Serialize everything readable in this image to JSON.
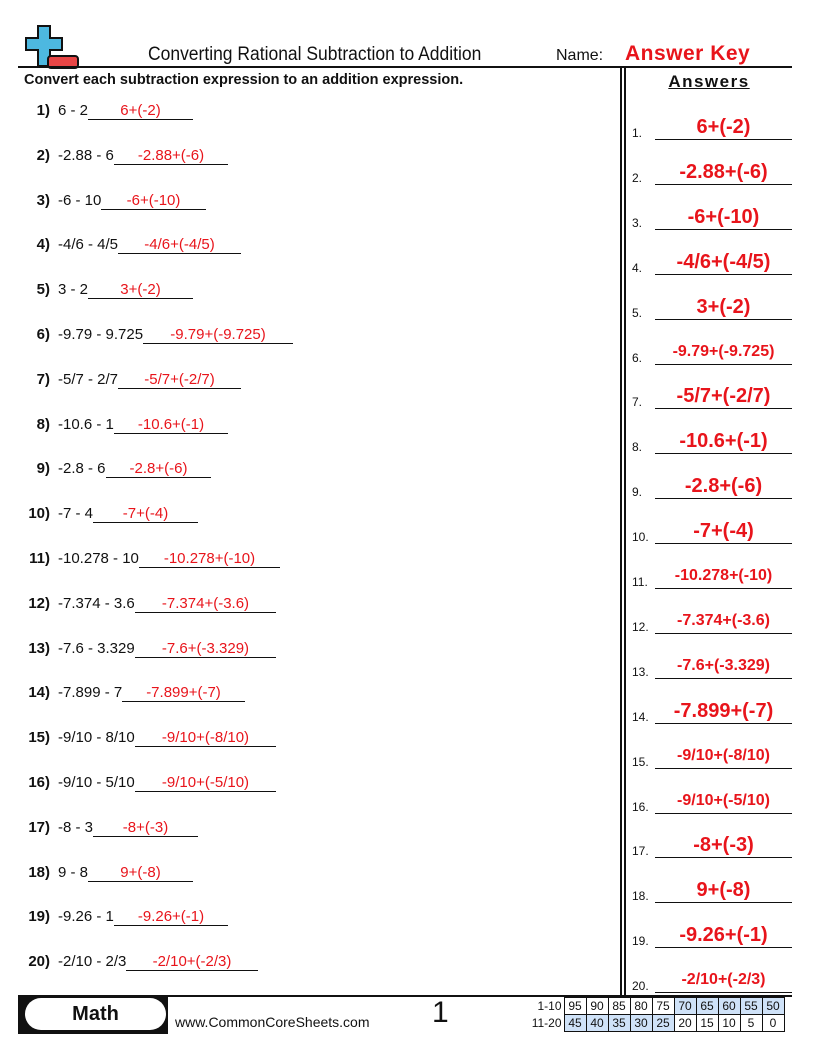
{
  "header": {
    "title": "Converting Rational Subtraction to Addition",
    "name_label": "Name:",
    "name_value": "Answer Key",
    "logo": "plus-minus-logo"
  },
  "instructions": "Convert each subtraction expression to an addition expression.",
  "answers_heading": "Answers",
  "problems": [
    {
      "num": "1)",
      "expr": "6 - 2",
      "answer": "6+(-2)"
    },
    {
      "num": "2)",
      "expr": "-2.88 - 6",
      "answer": "-2.88+(-6)"
    },
    {
      "num": "3)",
      "expr": "-6 - 10",
      "answer": "-6+(-10)"
    },
    {
      "num": "4)",
      "expr": "-4/6 - 4/5",
      "answer": "-4/6+(-4/5)"
    },
    {
      "num": "5)",
      "expr": "3 - 2",
      "answer": "3+(-2)"
    },
    {
      "num": "6)",
      "expr": "-9.79 - 9.725",
      "answer": "-9.79+(-9.725)"
    },
    {
      "num": "7)",
      "expr": "-5/7 - 2/7",
      "answer": "-5/7+(-2/7)"
    },
    {
      "num": "8)",
      "expr": "-10.6 - 1",
      "answer": "-10.6+(-1)"
    },
    {
      "num": "9)",
      "expr": "-2.8 - 6",
      "answer": "-2.8+(-6)"
    },
    {
      "num": "10)",
      "expr": "-7 - 4",
      "answer": "-7+(-4)"
    },
    {
      "num": "11)",
      "expr": "-10.278 - 10",
      "answer": "-10.278+(-10)"
    },
    {
      "num": "12)",
      "expr": "-7.374 - 3.6",
      "answer": "-7.374+(-3.6)"
    },
    {
      "num": "13)",
      "expr": "-7.6 - 3.329",
      "answer": "-7.6+(-3.329)"
    },
    {
      "num": "14)",
      "expr": "-7.899 - 7",
      "answer": "-7.899+(-7)"
    },
    {
      "num": "15)",
      "expr": "-9/10 - 8/10",
      "answer": "-9/10+(-8/10)"
    },
    {
      "num": "16)",
      "expr": "-9/10 - 5/10",
      "answer": "-9/10+(-5/10)"
    },
    {
      "num": "17)",
      "expr": "-8 - 3",
      "answer": "-8+(-3)"
    },
    {
      "num": "18)",
      "expr": "9 - 8",
      "answer": "9+(-8)"
    },
    {
      "num": "19)",
      "expr": "-9.26 - 1",
      "answer": "-9.26+(-1)"
    },
    {
      "num": "20)",
      "expr": "-2/10 - 2/3",
      "answer": "-2/10+(-2/3)"
    }
  ],
  "answer_numbers": [
    "1.",
    "2.",
    "3.",
    "4.",
    "5.",
    "6.",
    "7.",
    "8.",
    "9.",
    "10.",
    "11.",
    "12.",
    "13.",
    "14.",
    "15.",
    "16.",
    "17.",
    "18.",
    "19.",
    "20."
  ],
  "footer": {
    "subject": "Math",
    "website": "www.CommonCoreSheets.com",
    "page": "1"
  },
  "score_table": {
    "rows": [
      {
        "label": "1-10",
        "values": [
          "95",
          "90",
          "85",
          "80",
          "75",
          "70",
          "65",
          "60",
          "55",
          "50"
        ],
        "highlighted": [
          false,
          false,
          false,
          false,
          false,
          true,
          true,
          true,
          true,
          true
        ]
      },
      {
        "label": "11-20",
        "values": [
          "45",
          "40",
          "35",
          "30",
          "25",
          "20",
          "15",
          "10",
          "5",
          "0"
        ],
        "highlighted": [
          true,
          true,
          true,
          true,
          true,
          false,
          false,
          false,
          false,
          false
        ]
      }
    ]
  },
  "colors": {
    "answer_red": "#e8141b",
    "highlight_blue": "#cfe2f8",
    "logo_blue": "#4db8e0",
    "logo_red": "#e84545"
  }
}
